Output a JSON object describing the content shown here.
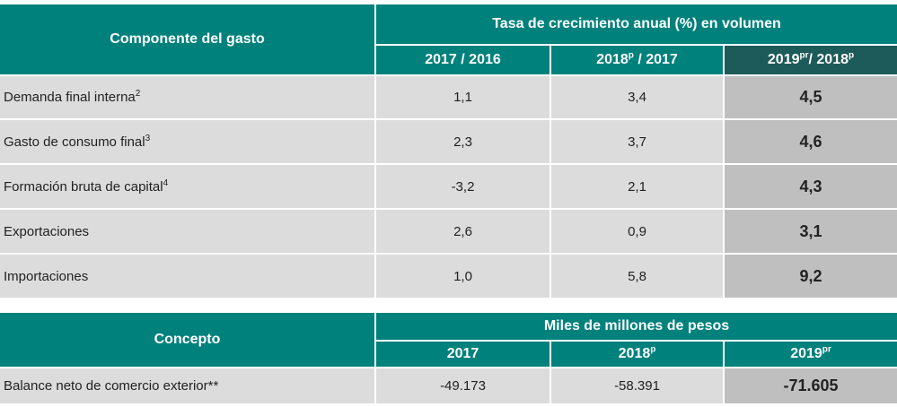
{
  "growth_table": {
    "header": {
      "component_label": "Componente del gasto",
      "group_label": "Tasa de crecimiento anual (%) en volumen",
      "col1": {
        "text": "2017 / 2016",
        "sup": ""
      },
      "col2": {
        "text": "2018",
        "sup": "p",
        "suffix": " / 2017"
      },
      "col3": {
        "text": "2019",
        "sup": "pr",
        "suffix": "/ 2018",
        "sup2": "p"
      }
    },
    "rows": [
      {
        "label": "Demanda final interna",
        "note": "2",
        "v1": "1,1",
        "v2": "3,4",
        "v3": "4,5"
      },
      {
        "label": "Gasto de consumo final",
        "note": "3",
        "v1": "2,3",
        "v2": "3,7",
        "v3": "4,6"
      },
      {
        "label": "Formación bruta de capital",
        "note": "4",
        "v1": "-3,2",
        "v2": "2,1",
        "v3": "4,3"
      },
      {
        "label": "Exportaciones",
        "note": "",
        "v1": "2,6",
        "v2": "0,9",
        "v3": "3,1"
      },
      {
        "label": "Importaciones",
        "note": "",
        "v1": "1,0",
        "v2": "5,8",
        "v3": "9,2"
      }
    ]
  },
  "balance_table": {
    "header": {
      "concept_label": "Concepto",
      "group_label": "Miles de millones de pesos",
      "col1": {
        "text": "2017",
        "sup": ""
      },
      "col2": {
        "text": "2018",
        "sup": "p"
      },
      "col3": {
        "text": "2019",
        "sup": "pr"
      }
    },
    "rows": [
      {
        "label": "Balance neto de comercio exterior**",
        "v1": "-49.173",
        "v2": "-58.391",
        "v3": "-71.605"
      }
    ]
  },
  "colors": {
    "header_teal": "#00817c",
    "header_dark": "#1d5a5a",
    "row_gray": "#dcdcdc",
    "highlight_gray": "#bfbfbf"
  }
}
